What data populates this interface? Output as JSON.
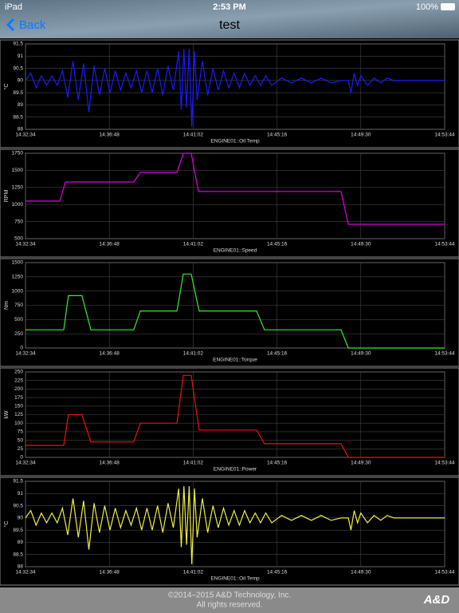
{
  "status_bar": {
    "device": "iPad",
    "time": "2:53 PM",
    "battery": "100%"
  },
  "nav": {
    "back": "Back",
    "title": "test"
  },
  "chart_data": [
    {
      "type": "line",
      "x_label": "ENGINE01::Oil Temp",
      "y_label": "°C",
      "color": "#1a1aff",
      "grid": true,
      "xlim": [
        "14:32:34",
        "14:53:44"
      ],
      "xticks": [
        "14:32:34",
        "14:36:48",
        "14:41:02",
        "14:45:16",
        "14:49:30",
        "14:53:44"
      ],
      "ylim": [
        88,
        91.5
      ],
      "yticks": [
        88,
        88.5,
        89,
        89.5,
        90,
        90.5,
        91,
        91.5
      ],
      "x": [
        "14:32:34",
        "14:32:50",
        "14:33:06",
        "14:33:22",
        "14:33:38",
        "14:33:54",
        "14:34:10",
        "14:34:26",
        "14:34:42",
        "14:34:58",
        "14:35:14",
        "14:35:30",
        "14:35:46",
        "14:36:02",
        "14:36:18",
        "14:36:34",
        "14:36:50",
        "14:37:06",
        "14:37:22",
        "14:37:38",
        "14:37:54",
        "14:38:10",
        "14:38:26",
        "14:38:42",
        "14:38:58",
        "14:39:14",
        "14:39:30",
        "14:39:46",
        "14:40:02",
        "14:40:18",
        "14:40:26",
        "14:40:34",
        "14:40:42",
        "14:40:50",
        "14:40:58",
        "14:41:06",
        "14:41:14",
        "14:41:30",
        "14:41:46",
        "14:42:02",
        "14:42:18",
        "14:42:34",
        "14:42:50",
        "14:43:06",
        "14:43:22",
        "14:43:38",
        "14:43:54",
        "14:44:10",
        "14:44:26",
        "14:44:42",
        "14:45:00",
        "14:45:30",
        "14:46:00",
        "14:46:30",
        "14:47:00",
        "14:47:30",
        "14:48:00",
        "14:48:30",
        "14:48:52",
        "14:49:00",
        "14:49:10",
        "14:49:20",
        "14:49:30",
        "14:49:50",
        "14:50:10",
        "14:50:30",
        "14:50:50",
        "14:51:10",
        "14:53:44"
      ],
      "values": [
        90.0,
        90.3,
        89.7,
        90.2,
        89.8,
        90.2,
        89.8,
        90.4,
        89.3,
        90.8,
        89.2,
        90.7,
        88.7,
        90.6,
        89.4,
        90.5,
        89.5,
        90.4,
        89.6,
        90.3,
        89.7,
        90.4,
        89.5,
        90.4,
        89.5,
        90.5,
        89.4,
        90.6,
        89.6,
        91.2,
        88.8,
        91.3,
        88.9,
        91.3,
        88.1,
        91.2,
        89.2,
        90.8,
        89.4,
        90.5,
        89.6,
        90.4,
        89.7,
        90.3,
        89.7,
        90.3,
        89.8,
        90.2,
        89.8,
        90.2,
        89.8,
        90.1,
        89.9,
        90.1,
        89.9,
        90.1,
        89.9,
        90.0,
        90.0,
        89.5,
        90.3,
        89.8,
        90.2,
        89.8,
        90.1,
        89.9,
        90.1,
        90.0,
        90.0
      ]
    },
    {
      "type": "line",
      "x_label": "ENGINE01::Speed",
      "y_label": "RPM",
      "color": "#e000e0",
      "grid": true,
      "xlim": [
        "14:32:34",
        "14:53:44"
      ],
      "xticks": [
        "14:32:34",
        "14:36:48",
        "14:41:02",
        "14:45:16",
        "14:49:30",
        "14:53:44"
      ],
      "ylim": [
        500,
        1750
      ],
      "yticks": [
        500,
        750,
        1000,
        1250,
        1500,
        1750
      ],
      "x": [
        "14:32:34",
        "14:34:18",
        "14:34:35",
        "14:38:02",
        "14:38:22",
        "14:40:13",
        "14:40:32",
        "14:40:56",
        "14:41:18",
        "14:48:30",
        "14:48:52",
        "14:53:44"
      ],
      "values": [
        1050,
        1050,
        1330,
        1330,
        1470,
        1470,
        1750,
        1750,
        1190,
        1190,
        710,
        710
      ]
    },
    {
      "type": "line",
      "x_label": "ENGINE01::Torque",
      "y_label": "Nm",
      "color": "#33ee33",
      "grid": true,
      "xlim": [
        "14:32:34",
        "14:53:44"
      ],
      "xticks": [
        "14:32:34",
        "14:36:48",
        "14:41:02",
        "14:45:16",
        "14:49:30",
        "14:53:44"
      ],
      "ylim": [
        0,
        1500
      ],
      "yticks": [
        0,
        250,
        500,
        750,
        1000,
        1250,
        1500
      ],
      "x": [
        "14:32:34",
        "14:34:30",
        "14:34:44",
        "14:35:25",
        "14:35:52",
        "14:38:02",
        "14:38:22",
        "14:40:13",
        "14:40:32",
        "14:40:56",
        "14:41:20",
        "14:44:14",
        "14:44:38",
        "14:48:30",
        "14:48:52",
        "14:53:44"
      ],
      "values": [
        320,
        320,
        920,
        920,
        320,
        320,
        650,
        650,
        1300,
        1300,
        650,
        650,
        320,
        320,
        0,
        0
      ]
    },
    {
      "type": "line",
      "x_label": "ENGINE01::Power",
      "y_label": "kW",
      "color": "#ee1111",
      "grid": true,
      "xlim": [
        "14:32:34",
        "14:53:44"
      ],
      "xticks": [
        "14:32:34",
        "14:36:48",
        "14:41:02",
        "14:45:16",
        "14:49:30",
        "14:53:44"
      ],
      "ylim": [
        0,
        250
      ],
      "yticks": [
        0,
        25,
        50,
        75,
        100,
        125,
        150,
        175,
        200,
        225,
        250
      ],
      "x": [
        "14:32:34",
        "14:34:30",
        "14:34:44",
        "14:35:25",
        "14:35:52",
        "14:38:02",
        "14:38:22",
        "14:40:13",
        "14:40:32",
        "14:40:56",
        "14:41:20",
        "14:44:14",
        "14:44:38",
        "14:48:30",
        "14:48:52",
        "14:53:44"
      ],
      "values": [
        35,
        35,
        125,
        125,
        45,
        45,
        100,
        100,
        240,
        240,
        80,
        80,
        40,
        40,
        0,
        0
      ]
    },
    {
      "type": "line",
      "x_label": "ENGINE01::Oil Temp",
      "y_label": "°C",
      "color": "#eeee44",
      "grid": true,
      "xlim": [
        "14:32:34",
        "14:53:44"
      ],
      "xticks": [
        "14:32:34",
        "14:36:48",
        "14:41:02",
        "14:45:16",
        "14:49:30",
        "14:53:44"
      ],
      "ylim": [
        88,
        91.5
      ],
      "yticks": [
        88,
        88.5,
        89,
        89.5,
        90,
        90.5,
        91,
        91.5
      ],
      "x": [
        "14:32:34",
        "14:32:50",
        "14:33:06",
        "14:33:22",
        "14:33:38",
        "14:33:54",
        "14:34:10",
        "14:34:26",
        "14:34:42",
        "14:34:58",
        "14:35:14",
        "14:35:30",
        "14:35:46",
        "14:36:02",
        "14:36:18",
        "14:36:34",
        "14:36:50",
        "14:37:06",
        "14:37:22",
        "14:37:38",
        "14:37:54",
        "14:38:10",
        "14:38:26",
        "14:38:42",
        "14:38:58",
        "14:39:14",
        "14:39:30",
        "14:39:46",
        "14:40:02",
        "14:40:18",
        "14:40:26",
        "14:40:34",
        "14:40:42",
        "14:40:50",
        "14:40:58",
        "14:41:06",
        "14:41:14",
        "14:41:30",
        "14:41:46",
        "14:42:02",
        "14:42:18",
        "14:42:34",
        "14:42:50",
        "14:43:06",
        "14:43:22",
        "14:43:38",
        "14:43:54",
        "14:44:10",
        "14:44:26",
        "14:44:42",
        "14:45:00",
        "14:45:30",
        "14:46:00",
        "14:46:30",
        "14:47:00",
        "14:47:30",
        "14:48:00",
        "14:48:30",
        "14:48:52",
        "14:49:00",
        "14:49:10",
        "14:49:20",
        "14:49:30",
        "14:49:50",
        "14:50:10",
        "14:50:30",
        "14:50:50",
        "14:51:10",
        "14:53:44"
      ],
      "values": [
        90.0,
        90.3,
        89.7,
        90.2,
        89.8,
        90.2,
        89.8,
        90.4,
        89.3,
        90.8,
        89.2,
        90.7,
        88.7,
        90.6,
        89.4,
        90.5,
        89.5,
        90.4,
        89.6,
        90.3,
        89.7,
        90.4,
        89.5,
        90.4,
        89.5,
        90.5,
        89.4,
        90.6,
        89.6,
        91.2,
        88.8,
        91.3,
        88.9,
        91.3,
        88.1,
        91.2,
        89.2,
        90.8,
        89.4,
        90.5,
        89.6,
        90.4,
        89.7,
        90.3,
        89.7,
        90.3,
        89.8,
        90.2,
        89.8,
        90.2,
        89.8,
        90.1,
        89.9,
        90.1,
        89.9,
        90.1,
        89.9,
        90.0,
        90.0,
        89.5,
        90.3,
        89.8,
        90.2,
        89.8,
        90.1,
        89.9,
        90.1,
        90.0,
        90.0
      ]
    }
  ],
  "footer": {
    "copyright": "©2014–2015 A&D Technology, Inc.",
    "rights": "All rights reserved.",
    "logo": "A&D"
  }
}
